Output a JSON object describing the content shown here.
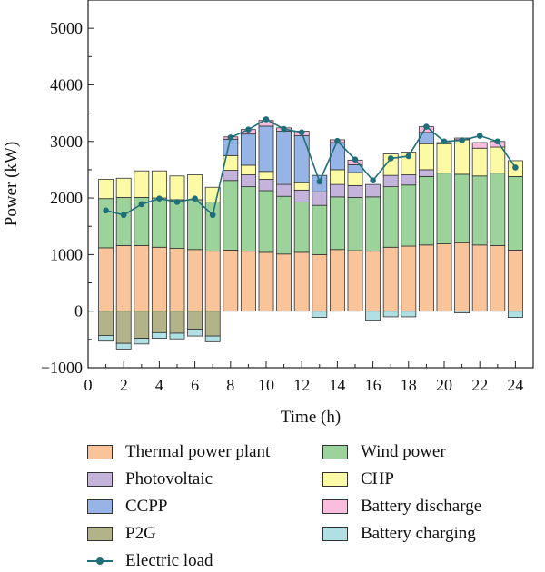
{
  "chart_data": {
    "type": "bar",
    "stacked": true,
    "xlabel": "Time (h)",
    "ylabel": "Power (kW)",
    "xlim": [
      0,
      25
    ],
    "ylim": [
      -1000,
      5500
    ],
    "x_ticks": [
      0,
      2,
      4,
      6,
      8,
      10,
      12,
      14,
      16,
      18,
      20,
      22,
      24
    ],
    "y_ticks": [
      -1000,
      0,
      1000,
      2000,
      3000,
      4000,
      5000
    ],
    "x": [
      1,
      2,
      3,
      4,
      5,
      6,
      7,
      8,
      9,
      10,
      11,
      12,
      13,
      14,
      15,
      16,
      17,
      18,
      19,
      20,
      21,
      22,
      23,
      24
    ],
    "series": [
      {
        "name": "Thermal power plant",
        "color": "#f9c49a",
        "values": [
          1120,
          1160,
          1160,
          1130,
          1110,
          1090,
          1060,
          1080,
          1060,
          1040,
          1010,
          1040,
          1000,
          1090,
          1070,
          1060,
          1130,
          1150,
          1170,
          1190,
          1210,
          1170,
          1160,
          1080
        ]
      },
      {
        "name": "Wind power",
        "color": "#9cd39a",
        "values": [
          870,
          850,
          850,
          870,
          860,
          880,
          870,
          1230,
          1140,
          1090,
          1020,
          890,
          870,
          930,
          940,
          960,
          1070,
          1080,
          1210,
          1250,
          1210,
          1220,
          1280,
          1300
        ]
      },
      {
        "name": "Photovoltaic",
        "color": "#c4b4dc",
        "values": [
          0,
          0,
          0,
          0,
          0,
          0,
          0,
          180,
          210,
          200,
          210,
          210,
          240,
          220,
          210,
          220,
          200,
          180,
          120,
          0,
          0,
          0,
          0,
          0
        ]
      },
      {
        "name": "CHP",
        "color": "#fcfaa4",
        "values": [
          340,
          340,
          470,
          480,
          420,
          440,
          260,
          260,
          170,
          140,
          0,
          130,
          0,
          260,
          230,
          0,
          380,
          400,
          460,
          520,
          610,
          490,
          460,
          280
        ]
      },
      {
        "name": "CCPP",
        "color": "#96b4e6",
        "values": [
          0,
          0,
          0,
          0,
          0,
          0,
          0,
          290,
          550,
          800,
          940,
          830,
          290,
          480,
          140,
          0,
          0,
          0,
          200,
          0,
          0,
          0,
          0,
          0
        ]
      },
      {
        "name": "Battery discharge",
        "color": "#fbbdde",
        "values": [
          0,
          0,
          0,
          0,
          0,
          0,
          0,
          40,
          80,
          100,
          60,
          80,
          0,
          50,
          80,
          0,
          0,
          0,
          100,
          20,
          30,
          100,
          100,
          0
        ]
      }
    ],
    "negative_series": [
      {
        "name": "P2G",
        "color": "#b3b38a",
        "values": [
          430,
          570,
          480,
          380,
          390,
          320,
          440,
          0,
          0,
          0,
          0,
          0,
          0,
          0,
          0,
          0,
          0,
          0,
          0,
          0,
          0,
          0,
          0,
          0
        ]
      },
      {
        "name": "Battery charging",
        "color": "#b1e0e4",
        "values": [
          100,
          100,
          100,
          100,
          100,
          120,
          100,
          0,
          0,
          0,
          0,
          0,
          110,
          0,
          0,
          160,
          100,
          100,
          0,
          0,
          30,
          0,
          0,
          110
        ]
      }
    ],
    "line": {
      "name": "Electric load",
      "color": "#1f6f7a",
      "values": [
        1780,
        1700,
        1890,
        1990,
        1930,
        1990,
        1700,
        3070,
        3210,
        3390,
        3220,
        3160,
        2290,
        3010,
        2680,
        2310,
        2700,
        2740,
        3260,
        3000,
        3020,
        3100,
        3000,
        2540
      ]
    },
    "grid": false,
    "legend": {
      "columns": 2,
      "order": [
        "Thermal power plant",
        "Wind power",
        "Photovoltaic",
        "CHP",
        "CCPP",
        "Battery discharge",
        "P2G",
        "Battery charging",
        "Electric load"
      ]
    }
  }
}
